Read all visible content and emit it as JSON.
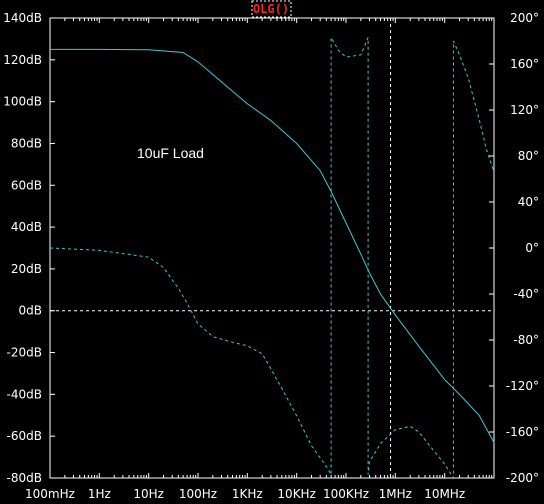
{
  "chart_data": {
    "type": "line",
    "title": "OLG()",
    "annotation": "10uF Load",
    "x_scale": "log",
    "xlim": [
      0.1,
      100000000
    ],
    "x_ticks": [
      "100mHz",
      "1Hz",
      "10Hz",
      "100Hz",
      "1KHz",
      "10KHz",
      "100KHz",
      "1MHz",
      "10MHz"
    ],
    "ylim_left": [
      -80,
      140
    ],
    "y_ticks_left": [
      "140dB",
      "120dB",
      "100dB",
      "80dB",
      "60dB",
      "40dB",
      "20dB",
      "0dB",
      "-20dB",
      "-40dB",
      "-60dB",
      "-80dB"
    ],
    "ylim_right": [
      -200,
      200
    ],
    "y_ticks_right": [
      "200°",
      "160°",
      "120°",
      "80°",
      "40°",
      "0°",
      "-40°",
      "-80°",
      "-120°",
      "-160°",
      "-200°"
    ],
    "grid": false,
    "colors": {
      "background": "#000000",
      "trace": "#3cc8d8",
      "axes": "#ffffff",
      "title": "#ff2020"
    },
    "cursor": {
      "x": 800000,
      "y_db": 0
    },
    "series": [
      {
        "axis": "left",
        "style": "solid",
        "x": [
          0.1,
          1,
          10,
          50,
          100,
          200,
          500,
          1000,
          3000,
          10000,
          30000,
          50000,
          100000,
          200000,
          300000,
          500000,
          1000000,
          3000000,
          10000000,
          20000000,
          50000000,
          100000000
        ],
        "y": [
          125,
          125,
          124.8,
          123.5,
          119,
          113,
          105,
          99,
          91,
          80,
          67,
          57,
          42,
          27,
          18,
          8,
          -2,
          -17,
          -33,
          -40,
          -50,
          -63
        ]
      },
      {
        "axis": "right",
        "style": "dashed",
        "x": [
          0.1,
          1,
          10,
          20,
          40,
          60,
          100,
          200,
          500,
          1000,
          2000,
          3000,
          5000,
          10000,
          20000,
          40000,
          50000,
          50000,
          70000,
          100000,
          200000,
          280000,
          280000,
          300000,
          500000,
          1000000,
          2000000,
          3000000,
          5000000,
          10000000,
          15000000,
          15000000,
          20000000,
          30000000,
          50000000,
          70000000,
          100000000
        ],
        "y": [
          0,
          -2,
          -8,
          -17,
          -35,
          -48,
          -66,
          -77,
          -82,
          -85,
          -92,
          -105,
          -122,
          -146,
          -172,
          -190,
          -197,
          183,
          172,
          166,
          168,
          183,
          -197,
          -186,
          -170,
          -158,
          -155,
          -160,
          -172,
          -188,
          -200,
          180,
          168,
          148,
          112,
          86,
          66
        ]
      }
    ]
  }
}
